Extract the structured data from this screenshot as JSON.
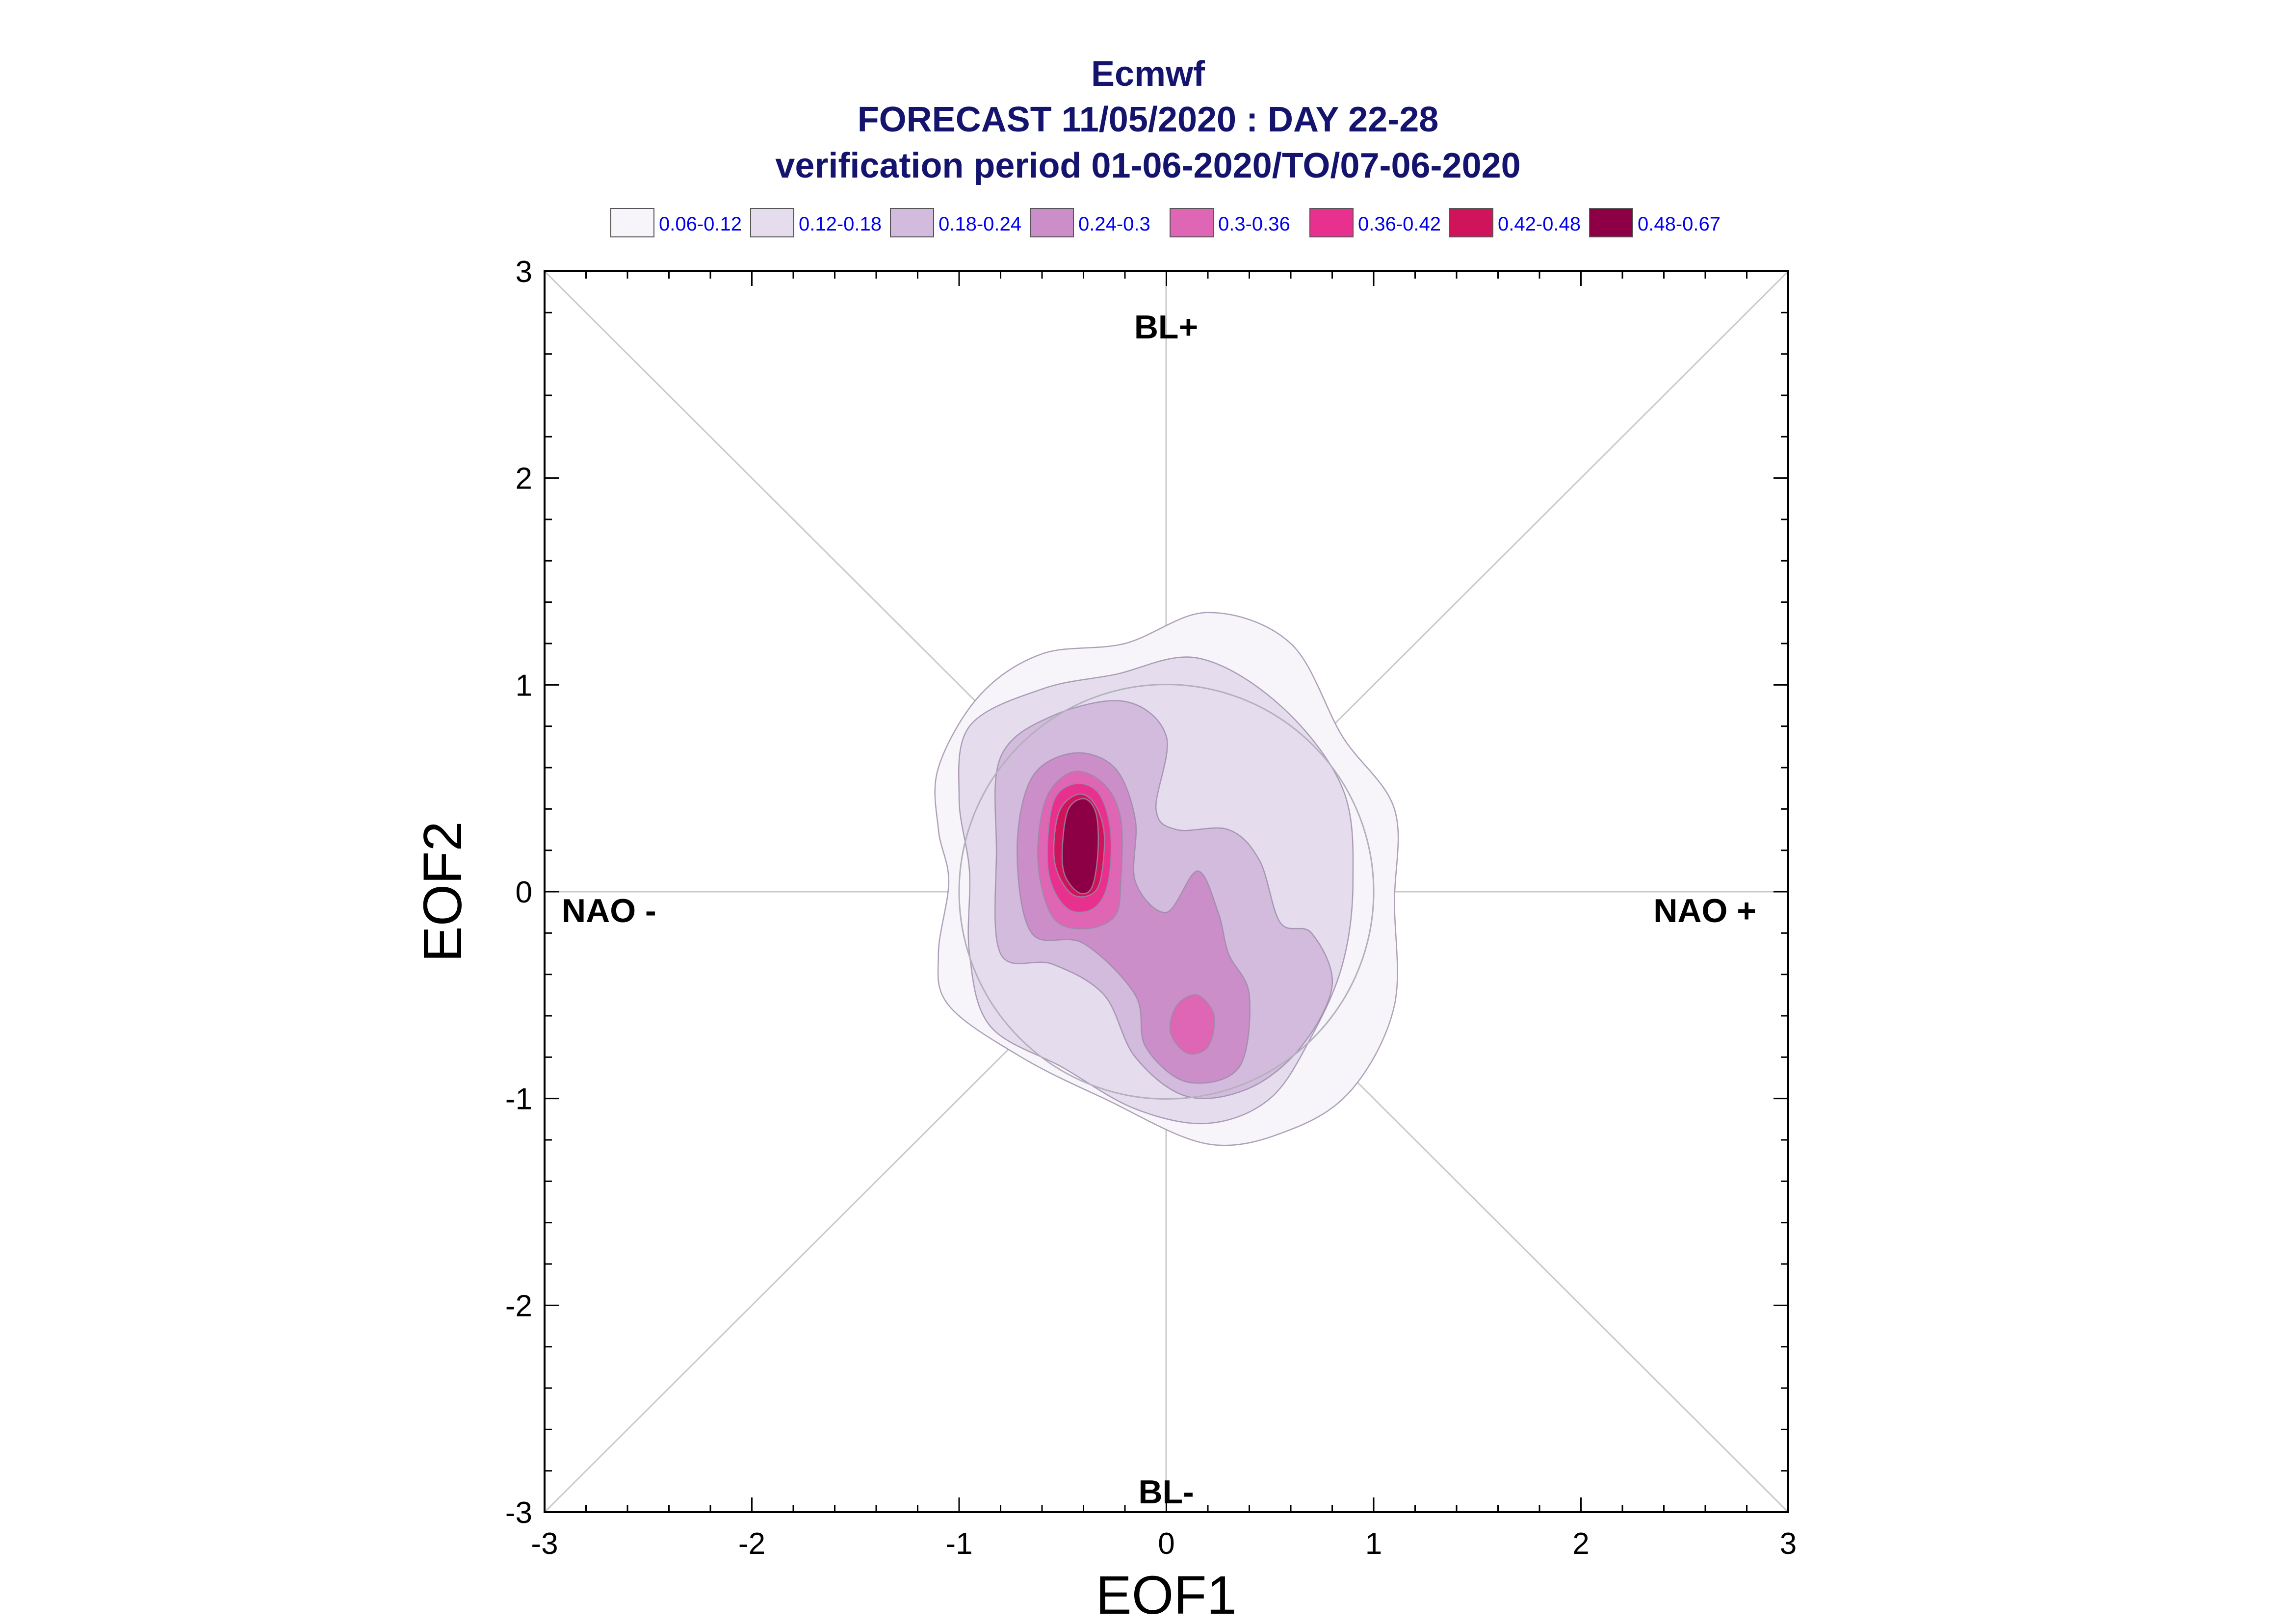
{
  "chart_data": {
    "type": "contour",
    "title": [
      "Ecmwf",
      "FORECAST 11/05/2020 : DAY 22-28",
      "verification period 01-06-2020/TO/07-06-2020"
    ],
    "xlabel": "EOF1",
    "ylabel": "EOF2",
    "xlim": [
      -3,
      3
    ],
    "ylim": [
      -3,
      3
    ],
    "xticks": [
      -3,
      -2,
      -1,
      0,
      1,
      2,
      3
    ],
    "yticks": [
      -3,
      -2,
      -1,
      0,
      1,
      2,
      3
    ],
    "grid": false,
    "legend_position": "top",
    "legend": [
      {
        "label": "0.06-0.12",
        "color": "#f7f4fa"
      },
      {
        "label": "0.12-0.18",
        "color": "#e5ddee"
      },
      {
        "label": "0.18-0.24",
        "color": "#d2bbdc"
      },
      {
        "label": "0.24-0.3",
        "color": "#cc8ec8"
      },
      {
        "label": "0.3-0.36",
        "color": "#df66b4"
      },
      {
        "label": "0.36-0.42",
        "color": "#e8318e"
      },
      {
        "label": "0.42-0.48",
        "color": "#cf145c"
      },
      {
        "label": "0.48-0.67",
        "color": "#8e0045"
      }
    ],
    "regime_labels": {
      "top": "BL+",
      "bottom": "BL-",
      "left": "NAO -",
      "right": "NAO +"
    },
    "reference_circle_radius": 1,
    "density_levels": [
      {
        "level": "0.06-0.12",
        "polygons": [
          [
            [
              -1.1,
              0.6
            ],
            [
              -0.9,
              0.95
            ],
            [
              -0.6,
              1.15
            ],
            [
              -0.2,
              1.2
            ],
            [
              0.2,
              1.35
            ],
            [
              0.6,
              1.2
            ],
            [
              0.85,
              0.75
            ],
            [
              1.1,
              0.4
            ],
            [
              1.1,
              -0.05
            ],
            [
              1.1,
              -0.55
            ],
            [
              0.9,
              -0.95
            ],
            [
              0.6,
              -1.15
            ],
            [
              0.2,
              -1.22
            ],
            [
              -0.3,
              -1.0
            ],
            [
              -0.7,
              -0.8
            ],
            [
              -1.05,
              -0.55
            ],
            [
              -1.1,
              -0.3
            ],
            [
              -1.05,
              0.05
            ],
            [
              -1.1,
              0.3
            ]
          ]
        ]
      },
      {
        "level": "0.12-0.18",
        "polygons": [
          [
            [
              -0.95,
              0.8
            ],
            [
              -0.6,
              0.98
            ],
            [
              -0.25,
              1.05
            ],
            [
              0.15,
              1.13
            ],
            [
              0.55,
              0.9
            ],
            [
              0.85,
              0.5
            ],
            [
              0.9,
              0.05
            ],
            [
              0.85,
              -0.35
            ],
            [
              0.7,
              -0.7
            ],
            [
              0.5,
              -1.0
            ],
            [
              0.2,
              -1.12
            ],
            [
              -0.15,
              -1.05
            ],
            [
              -0.5,
              -0.85
            ],
            [
              -0.85,
              -0.65
            ],
            [
              -0.95,
              -0.3
            ],
            [
              -0.95,
              0.1
            ],
            [
              -1.0,
              0.45
            ]
          ]
        ]
      },
      {
        "level": "0.18-0.24",
        "polygons": [
          [
            [
              -0.8,
              0.65
            ],
            [
              -0.55,
              0.85
            ],
            [
              -0.2,
              0.92
            ],
            [
              0.0,
              0.75
            ],
            [
              -0.05,
              0.4
            ],
            [
              0.05,
              0.3
            ],
            [
              0.3,
              0.3
            ],
            [
              0.45,
              0.15
            ],
            [
              0.55,
              -0.15
            ],
            [
              0.7,
              -0.2
            ],
            [
              0.8,
              -0.45
            ],
            [
              0.65,
              -0.75
            ],
            [
              0.4,
              -0.95
            ],
            [
              0.1,
              -0.99
            ],
            [
              -0.15,
              -0.8
            ],
            [
              -0.3,
              -0.5
            ],
            [
              -0.55,
              -0.35
            ],
            [
              -0.8,
              -0.3
            ],
            [
              -0.82,
              0.2
            ]
          ]
        ]
      },
      {
        "level": "0.24-0.3",
        "polygons": [
          [
            [
              -0.65,
              0.55
            ],
            [
              -0.45,
              0.67
            ],
            [
              -0.25,
              0.6
            ],
            [
              -0.15,
              0.35
            ],
            [
              -0.15,
              0.05
            ],
            [
              0.0,
              -0.1
            ],
            [
              0.15,
              0.1
            ],
            [
              0.25,
              -0.1
            ],
            [
              0.3,
              -0.3
            ],
            [
              0.4,
              -0.5
            ],
            [
              0.35,
              -0.85
            ],
            [
              0.1,
              -0.92
            ],
            [
              -0.1,
              -0.75
            ],
            [
              -0.15,
              -0.5
            ],
            [
              -0.4,
              -0.25
            ],
            [
              -0.65,
              -0.2
            ],
            [
              -0.72,
              0.2
            ]
          ]
        ]
      },
      {
        "level": "0.3-0.36",
        "polygons": [
          [
            [
              -0.58,
              0.45
            ],
            [
              -0.45,
              0.58
            ],
            [
              -0.3,
              0.52
            ],
            [
              -0.22,
              0.35
            ],
            [
              -0.22,
              0.05
            ],
            [
              -0.25,
              -0.12
            ],
            [
              -0.4,
              -0.18
            ],
            [
              -0.55,
              -0.12
            ],
            [
              -0.62,
              0.15
            ]
          ],
          [
            [
              0.05,
              -0.55
            ],
            [
              0.15,
              -0.5
            ],
            [
              0.23,
              -0.6
            ],
            [
              0.2,
              -0.75
            ],
            [
              0.1,
              -0.78
            ],
            [
              0.02,
              -0.68
            ]
          ]
        ]
      },
      {
        "level": "0.36-0.42",
        "polygons": [
          [
            [
              -0.55,
              0.42
            ],
            [
              -0.45,
              0.52
            ],
            [
              -0.33,
              0.48
            ],
            [
              -0.27,
              0.3
            ],
            [
              -0.28,
              0.05
            ],
            [
              -0.35,
              -0.08
            ],
            [
              -0.48,
              -0.08
            ],
            [
              -0.57,
              0.1
            ]
          ]
        ]
      },
      {
        "level": "0.42-0.48",
        "polygons": [
          [
            [
              -0.52,
              0.38
            ],
            [
              -0.43,
              0.47
            ],
            [
              -0.35,
              0.43
            ],
            [
              -0.3,
              0.28
            ],
            [
              -0.32,
              0.05
            ],
            [
              -0.38,
              -0.02
            ],
            [
              -0.47,
              0.0
            ],
            [
              -0.54,
              0.15
            ]
          ]
        ]
      },
      {
        "level": "0.48-0.67",
        "polygons": [
          [
            [
              -0.48,
              0.38
            ],
            [
              -0.4,
              0.45
            ],
            [
              -0.34,
              0.38
            ],
            [
              -0.33,
              0.2
            ],
            [
              -0.36,
              0.02
            ],
            [
              -0.43,
              0.0
            ],
            [
              -0.5,
              0.12
            ]
          ]
        ]
      }
    ]
  }
}
